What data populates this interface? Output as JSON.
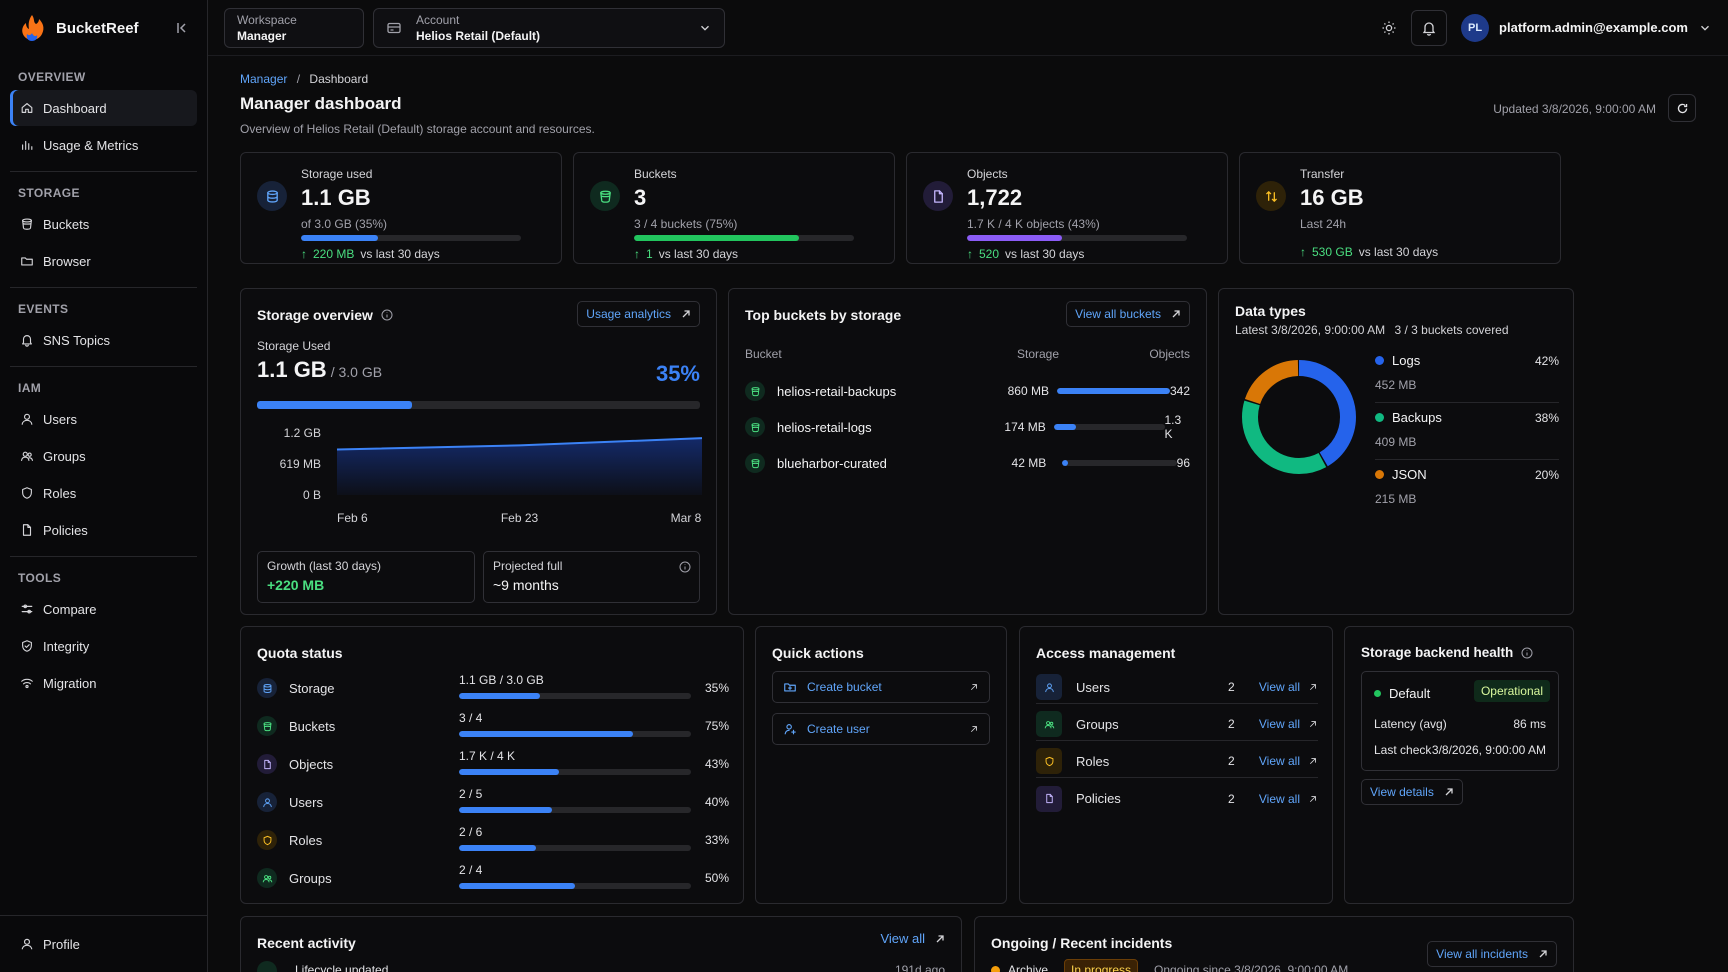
{
  "app": {
    "name": "BucketReef"
  },
  "sidebar": {
    "sections": [
      {
        "title": "OVERVIEW",
        "items": [
          {
            "label": "Dashboard",
            "icon": "home-icon",
            "active": true
          },
          {
            "label": "Usage & Metrics",
            "icon": "bar-chart-icon"
          }
        ]
      },
      {
        "title": "STORAGE",
        "items": [
          {
            "label": "Buckets",
            "icon": "bucket-icon"
          },
          {
            "label": "Browser",
            "icon": "folder-icon"
          }
        ]
      },
      {
        "title": "EVENTS",
        "items": [
          {
            "label": "SNS Topics",
            "icon": "bell-icon"
          }
        ]
      },
      {
        "title": "IAM",
        "items": [
          {
            "label": "Users",
            "icon": "user-icon"
          },
          {
            "label": "Groups",
            "icon": "users-icon"
          },
          {
            "label": "Roles",
            "icon": "shield-icon"
          },
          {
            "label": "Policies",
            "icon": "file-icon"
          }
        ]
      },
      {
        "title": "TOOLS",
        "items": [
          {
            "label": "Compare",
            "icon": "sliders-icon"
          },
          {
            "label": "Integrity",
            "icon": "shield-check-icon"
          },
          {
            "label": "Migration",
            "icon": "migration-icon"
          }
        ]
      }
    ],
    "profile": "Profile"
  },
  "topbar": {
    "workspace_label": "Workspace",
    "workspace_value": "Manager",
    "account_label": "Account",
    "account_value": "Helios Retail (Default)",
    "avatar": "PL",
    "email": "platform.admin@example.com"
  },
  "page": {
    "crumb_root": "Manager",
    "crumb_sep": "/",
    "crumb_current": "Dashboard",
    "title": "Manager dashboard",
    "subtitle": "Overview of Helios Retail (Default) storage account and resources.",
    "updated": "Updated 3/8/2026, 9:00:00 AM"
  },
  "stats": [
    {
      "title": "Storage used",
      "value": "1.1 GB",
      "sub": "of 3.0 GB (35%)",
      "progress": 0.35,
      "color": "#3b82f6",
      "delta": "220 MB",
      "delta_text": "vs last 30 days"
    },
    {
      "title": "Buckets",
      "value": "3",
      "sub": "3 / 4 buckets (75%)",
      "progress": 0.75,
      "color": "#22c55e",
      "delta": "1",
      "delta_text": "vs last 30 days"
    },
    {
      "title": "Objects",
      "value": "1,722",
      "sub": "1.7 K / 4 K objects (43%)",
      "progress": 0.43,
      "color": "#8b5cf6",
      "delta": "520",
      "delta_text": "vs last 30 days"
    },
    {
      "title": "Transfer",
      "value": "16 GB",
      "sub": "Last 24h",
      "delta": "530 GB",
      "delta_text": "vs last 30 days"
    }
  ],
  "storage_overview": {
    "title": "Storage overview",
    "button": "Usage analytics",
    "label": "Storage Used",
    "value": "1.1 GB",
    "of": "/ 3.0 GB",
    "percent": "35%",
    "progress": 0.35,
    "growth_label": "Growth (last 30 days)",
    "growth_value": "+220 MB",
    "proj_label": "Projected full",
    "proj_value": "~9 months"
  },
  "chart_data": {
    "type": "area",
    "x": [
      "Feb 6",
      "Feb 23",
      "Mar 8"
    ],
    "y_ticks": [
      "1.2 GB",
      "619 MB",
      "0 B"
    ],
    "ylim": [
      0,
      1.2
    ],
    "values": [
      0.88,
      0.96,
      1.1
    ]
  },
  "top_buckets": {
    "title": "Top buckets by storage",
    "button": "View all buckets",
    "headers": [
      "Bucket",
      "Storage",
      "Objects"
    ],
    "rows": [
      {
        "name": "helios-retail-backups",
        "storage": "860 MB",
        "fraction": 1.0,
        "objects": "342"
      },
      {
        "name": "helios-retail-logs",
        "storage": "174 MB",
        "fraction": 0.2,
        "objects": "1.3 K"
      },
      {
        "name": "blueharbor-curated",
        "storage": "42 MB",
        "fraction": 0.05,
        "objects": "96"
      }
    ]
  },
  "data_types": {
    "title": "Data types",
    "latest": "Latest 3/8/2026, 9:00:00 AM",
    "covered": "3 / 3 buckets covered",
    "items": [
      {
        "name": "Logs",
        "percent": "42%",
        "size": "452 MB",
        "value": 42,
        "color": "#2563eb"
      },
      {
        "name": "Backups",
        "percent": "38%",
        "size": "409 MB",
        "value": 38,
        "color": "#10b981"
      },
      {
        "name": "JSON",
        "percent": "20%",
        "size": "215 MB",
        "value": 20,
        "color": "#d97706"
      }
    ]
  },
  "quota": {
    "title": "Quota status",
    "rows": [
      {
        "name": "Storage",
        "value": "1.1 GB / 3.0 GB",
        "percent": "35%",
        "fraction": 0.35,
        "icon": "database-icon"
      },
      {
        "name": "Buckets",
        "value": "3 / 4",
        "percent": "75%",
        "fraction": 0.75,
        "icon": "bucket-icon"
      },
      {
        "name": "Objects",
        "value": "1.7 K / 4 K",
        "percent": "43%",
        "fraction": 0.43,
        "icon": "file-icon"
      },
      {
        "name": "Users",
        "value": "2 / 5",
        "percent": "40%",
        "fraction": 0.4,
        "icon": "user-icon"
      },
      {
        "name": "Roles",
        "value": "2 / 6",
        "percent": "33%",
        "fraction": 0.33,
        "icon": "shield-icon"
      },
      {
        "name": "Groups",
        "value": "2 / 4",
        "percent": "50%",
        "fraction": 0.5,
        "icon": "users-icon"
      }
    ]
  },
  "quick_actions": {
    "title": "Quick actions",
    "items": [
      "Create bucket",
      "Create user"
    ]
  },
  "access": {
    "title": "Access management",
    "rows": [
      {
        "name": "Users",
        "count": "2",
        "link": "View all"
      },
      {
        "name": "Groups",
        "count": "2",
        "link": "View all"
      },
      {
        "name": "Roles",
        "count": "2",
        "link": "View all"
      },
      {
        "name": "Policies",
        "count": "2",
        "link": "View all"
      }
    ]
  },
  "health": {
    "title": "Storage backend health",
    "backend": "Default",
    "status": "Operational",
    "latency_label": "Latency (avg)",
    "latency": "86 ms",
    "check_label": "Last check",
    "check": "3/8/2026, 9:00:00 AM",
    "button": "View details"
  },
  "recent": {
    "title": "Recent activity",
    "link": "View all",
    "first": "Lifecycle updated",
    "first_time": "191d ago"
  },
  "incidents": {
    "title": "Ongoing / Recent incidents",
    "button": "View all incidents",
    "name": "Archive",
    "status": "In progress",
    "since": "Ongoing since 3/8/2026, 9:00:00 AM"
  }
}
